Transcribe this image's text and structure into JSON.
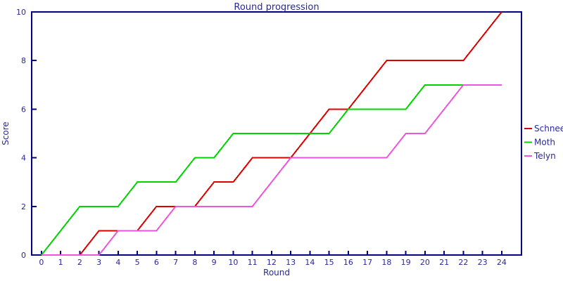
{
  "page": {
    "background": "#ffffff"
  },
  "chart_data": {
    "type": "line",
    "title": "Round progression",
    "xlabel": "Round",
    "ylabel": "Score",
    "x": [
      0,
      1,
      2,
      3,
      4,
      5,
      6,
      7,
      8,
      9,
      10,
      11,
      12,
      13,
      14,
      15,
      16,
      17,
      18,
      19,
      20,
      21,
      22,
      23,
      24
    ],
    "series": [
      {
        "name": "Schnee",
        "color": "#dd0000",
        "values": [
          0,
          0,
          0,
          1,
          1,
          1,
          2,
          2,
          2,
          3,
          3,
          4,
          4,
          4,
          5,
          6,
          6,
          7,
          8,
          8,
          8,
          8,
          8,
          9,
          10
        ]
      },
      {
        "name": "Moth",
        "color": "#00d400",
        "values": [
          0,
          1,
          2,
          2,
          2,
          3,
          3,
          3,
          4,
          4,
          5,
          5,
          5,
          5,
          5,
          5,
          6,
          6,
          6,
          6,
          7,
          7,
          7,
          7,
          7
        ]
      },
      {
        "name": "Telyn",
        "color": "#ee55dd",
        "values": [
          0,
          0,
          0,
          0,
          1,
          1,
          1,
          2,
          2,
          2,
          2,
          2,
          3,
          4,
          4,
          4,
          4,
          4,
          4,
          5,
          5,
          6,
          7,
          7,
          7
        ]
      }
    ],
    "x_ticks": [
      0,
      1,
      2,
      3,
      4,
      5,
      6,
      7,
      8,
      9,
      10,
      11,
      12,
      13,
      14,
      15,
      16,
      17,
      18,
      19,
      20,
      21,
      22,
      23,
      24
    ],
    "y_ticks": [
      0,
      2,
      4,
      6,
      8,
      10
    ],
    "xlim": [
      -0.51,
      25.03
    ],
    "ylim": [
      0,
      10
    ],
    "grid": false,
    "legend_position": "right-outside",
    "axis_color": "#000080",
    "text_color": "#28289a"
  }
}
